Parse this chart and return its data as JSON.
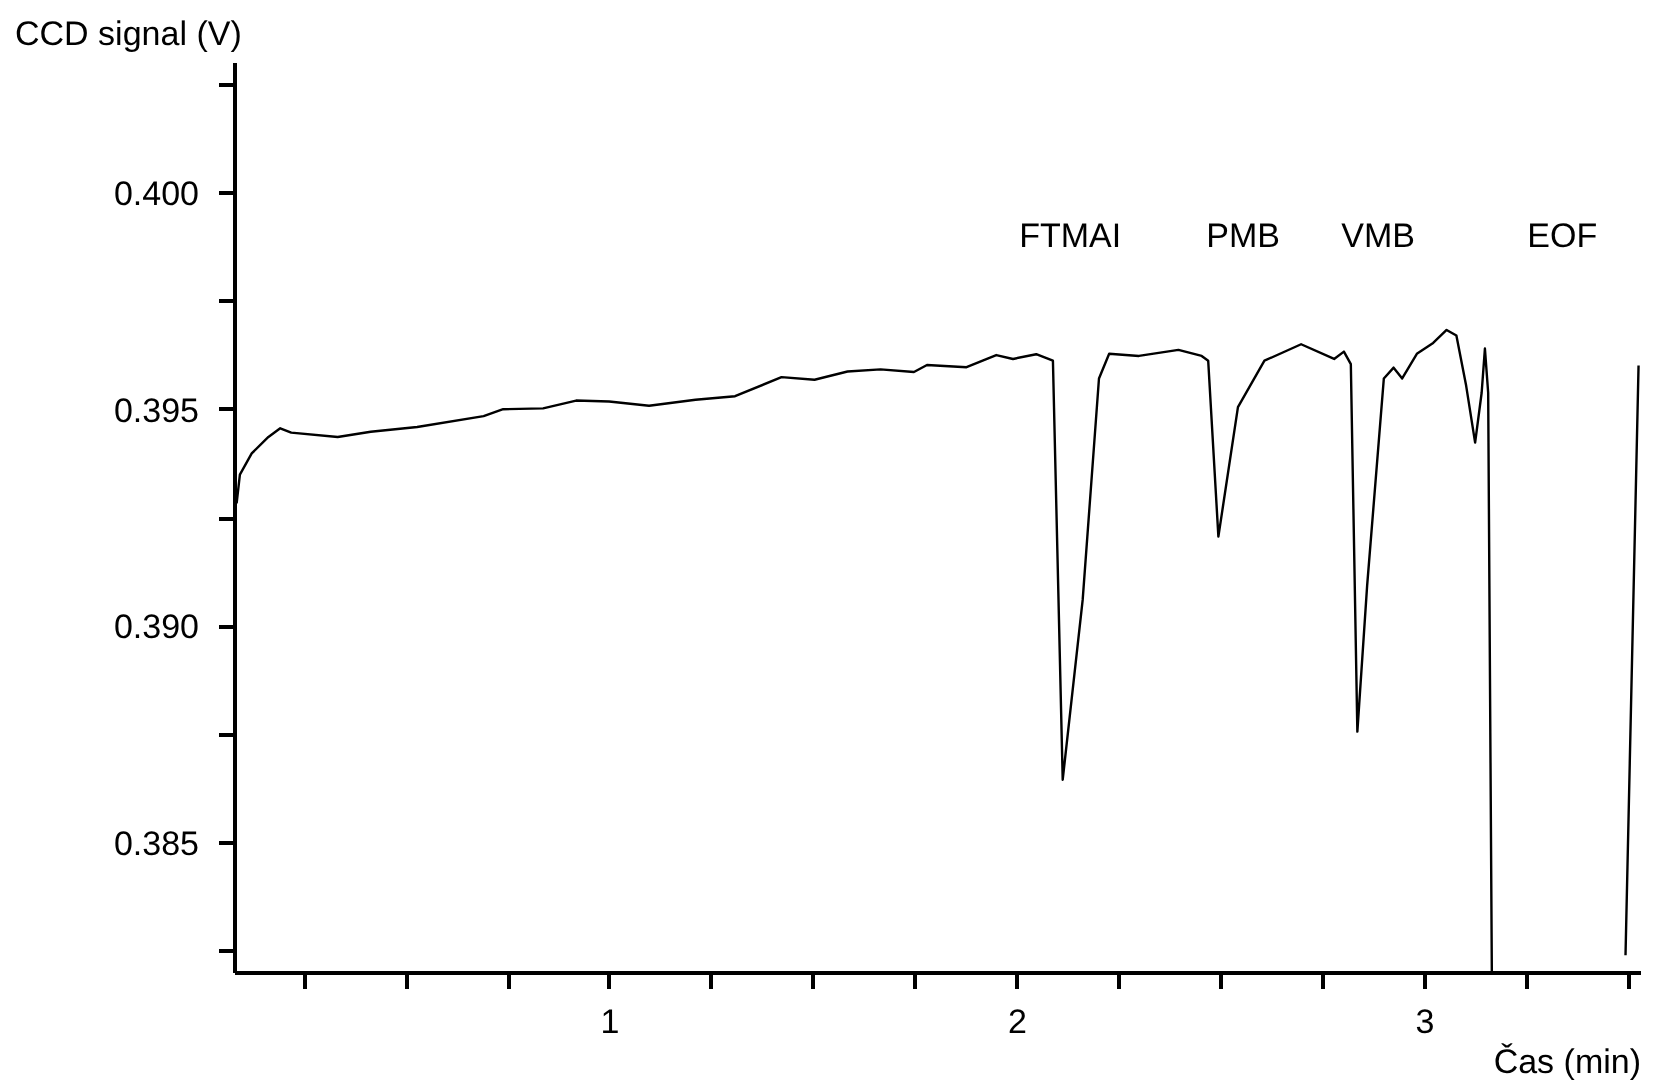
{
  "chart_data": {
    "type": "line",
    "xlabel": "Čas (min)",
    "ylabel": "CCD signal (V)",
    "x": [
      0.084,
      0.092,
      0.121,
      0.162,
      0.191,
      0.218,
      0.332,
      0.413,
      0.527,
      0.69,
      0.738,
      0.836,
      0.917,
      0.998,
      1.096,
      1.21,
      1.307,
      1.421,
      1.502,
      1.583,
      1.664,
      1.746,
      1.778,
      1.875,
      1.948,
      1.989,
      2.046,
      2.087,
      2.111,
      2.16,
      2.2,
      2.225,
      2.298,
      2.395,
      2.452,
      2.468,
      2.493,
      2.541,
      2.606,
      2.696,
      2.777,
      2.801,
      2.818,
      2.834,
      2.858,
      2.899,
      2.923,
      2.944,
      2.98,
      3.02,
      3.053,
      3.077,
      3.101,
      3.123,
      3.139,
      3.147,
      3.155,
      3.164,
      3.3,
      3.492,
      3.524
    ],
    "series": [
      {
        "color": "#000000",
        "values": [
          0.39284,
          0.3935,
          0.39399,
          0.39437,
          0.39457,
          0.39447,
          0.39437,
          0.39449,
          0.3946,
          0.39485,
          0.39501,
          0.39503,
          0.39521,
          0.39519,
          0.39509,
          0.39523,
          0.39531,
          0.39575,
          0.39569,
          0.39588,
          0.39593,
          0.39587,
          0.39603,
          0.39598,
          0.39626,
          0.39617,
          0.39628,
          0.39613,
          0.38646,
          0.39061,
          0.39572,
          0.39629,
          0.39624,
          0.39638,
          0.39624,
          0.39613,
          0.39207,
          0.39506,
          0.39613,
          0.39651,
          0.39617,
          0.39634,
          0.39605,
          0.38757,
          0.39094,
          0.39572,
          0.39597,
          0.39572,
          0.39629,
          0.39654,
          0.39684,
          0.39671,
          0.39555,
          0.39424,
          0.39539,
          0.39641,
          0.39539,
          0.382,
          null,
          0.38241,
          0.39602
        ]
      }
    ],
    "xlim": [
      0.08,
      3.53
    ],
    "ylim": [
      0.382,
      0.403
    ],
    "xticks": [
      {
        "value": 0.25,
        "label": null
      },
      {
        "value": 0.5,
        "label": null
      },
      {
        "value": 0.75,
        "label": null
      },
      1,
      {
        "value": 1.25,
        "label": null
      },
      {
        "value": 1.5,
        "label": null
      },
      {
        "value": 1.75,
        "label": null
      },
      2,
      {
        "value": 2.25,
        "label": null
      },
      {
        "value": 2.5,
        "label": null
      },
      {
        "value": 2.75,
        "label": null
      },
      3,
      {
        "value": 3.25,
        "label": null
      },
      {
        "value": 3.5,
        "label": null
      }
    ],
    "yticks": [
      {
        "value": 0.3825,
        "label": null
      },
      {
        "value": 0.385,
        "label": "0.385"
      },
      {
        "value": 0.3875,
        "label": null
      },
      {
        "value": 0.39,
        "label": "0.390"
      },
      {
        "value": 0.3925,
        "label": null
      },
      {
        "value": 0.395,
        "label": "0.395"
      },
      {
        "value": 0.3975,
        "label": null
      },
      {
        "value": 0.4,
        "label": "0.400"
      },
      {
        "value": 0.4025,
        "label": null
      }
    ],
    "annotations": [
      "FTMAI",
      "PMB",
      "VMB",
      "EOF"
    ],
    "grid": false,
    "marker": "none",
    "line_style": "solid"
  }
}
